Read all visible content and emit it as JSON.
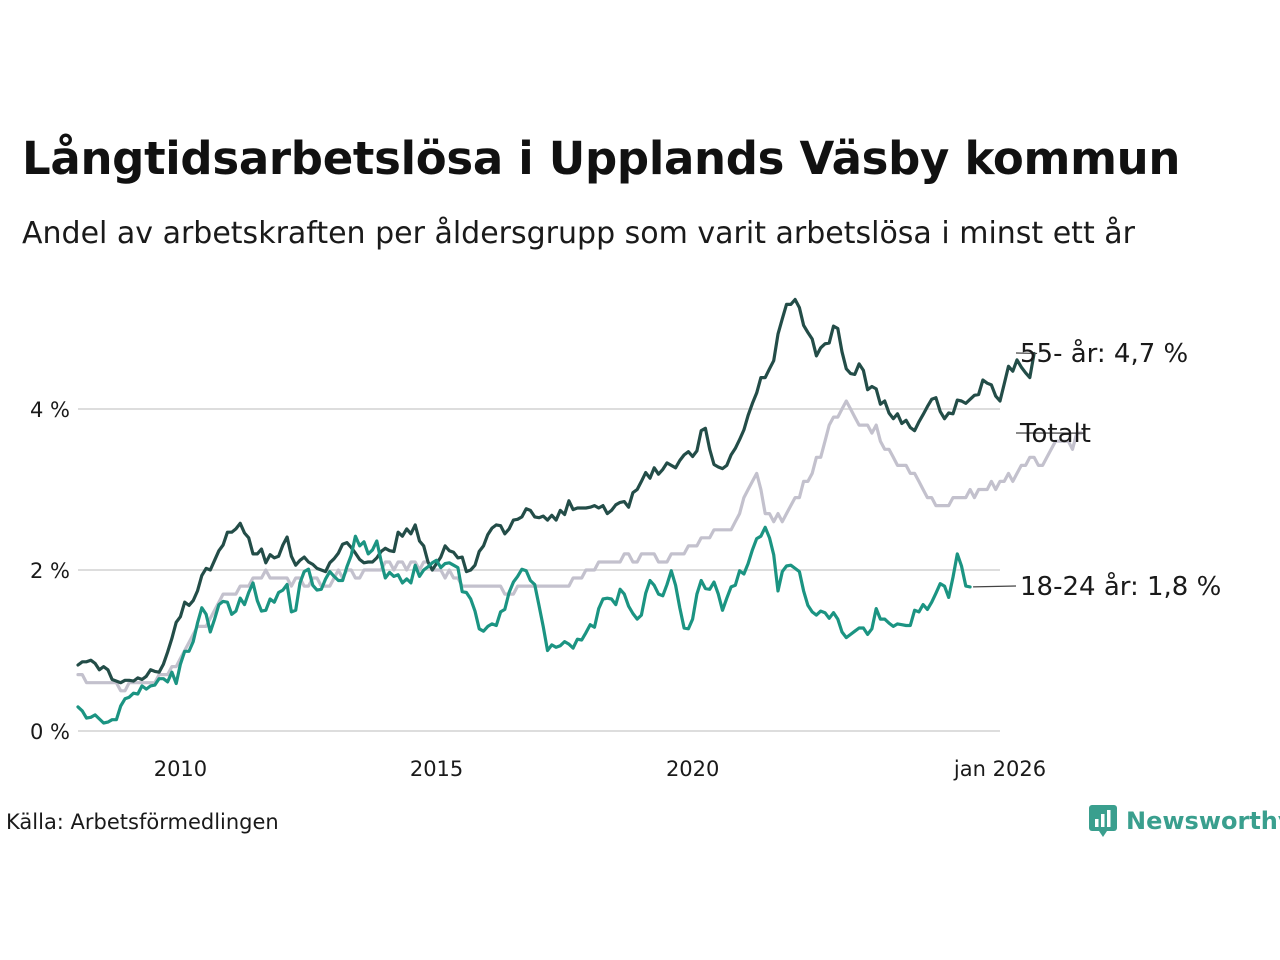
{
  "title": "Långtidsarbetslösa i Upplands Väsby kommun",
  "subtitle": "Andel av arbetskraften per åldersgrupp som varit arbetslösa i minst ett år",
  "source": "Källa: Arbetsförmedlingen",
  "brand": "Newsworthy",
  "colors": {
    "s55": "#234d48",
    "total": "#c3c1cd",
    "s1824": "#1b9482",
    "grid": "#dddddd",
    "brand": "#3a9f8e"
  },
  "chart_data": {
    "type": "line",
    "title": "Långtidsarbetslösa i Upplands Väsby kommun",
    "xlabel": "",
    "ylabel": "",
    "x_start": 2008.0,
    "x_step": 0.08333,
    "xlim": [
      2008.0,
      2026.0
    ],
    "ylim": [
      0,
      5.5
    ],
    "y_ticks": [
      {
        "v": 0,
        "label": "0 %"
      },
      {
        "v": 2,
        "label": "2 %"
      },
      {
        "v": 4,
        "label": "4 %"
      }
    ],
    "x_ticks": [
      {
        "v": 2010,
        "label": "2010"
      },
      {
        "v": 2015,
        "label": "2015"
      },
      {
        "v": 2020,
        "label": "2020"
      },
      {
        "v": 2026,
        "label": "jan 2026"
      }
    ],
    "grid": true,
    "series": [
      {
        "key": "total",
        "name": "Totalt",
        "label": "Totalt",
        "color": "#c3c1cd",
        "values": [
          0.7,
          0.7,
          0.6,
          0.6,
          0.6,
          0.6,
          0.6,
          0.6,
          0.6,
          0.6,
          0.5,
          0.5,
          0.6,
          0.6,
          0.6,
          0.6,
          0.6,
          0.6,
          0.6,
          0.7,
          0.7,
          0.7,
          0.8,
          0.8,
          0.9,
          1.0,
          1.1,
          1.2,
          1.3,
          1.3,
          1.3,
          1.4,
          1.5,
          1.6,
          1.7,
          1.7,
          1.7,
          1.7,
          1.8,
          1.8,
          1.8,
          1.9,
          1.9,
          1.9,
          2.0,
          1.9,
          1.9,
          1.9,
          1.9,
          1.9,
          1.8,
          1.9,
          1.9,
          1.8,
          1.8,
          1.9,
          1.9,
          1.8,
          1.8,
          1.8,
          1.9,
          2.0,
          1.9,
          2.0,
          2.0,
          1.9,
          1.9,
          2.0,
          2.0,
          2.0,
          2.0,
          2.0,
          2.1,
          2.1,
          2.0,
          2.1,
          2.1,
          2.0,
          2.1,
          2.1,
          2.0,
          2.1,
          2.1,
          2.0,
          2.0,
          2.0,
          1.9,
          2.0,
          1.9,
          1.9,
          1.8,
          1.8,
          1.8,
          1.8,
          1.8,
          1.8,
          1.8,
          1.8,
          1.8,
          1.8,
          1.7,
          1.7,
          1.7,
          1.8,
          1.8,
          1.8,
          1.8,
          1.8,
          1.8,
          1.8,
          1.8,
          1.8,
          1.8,
          1.8,
          1.8,
          1.8,
          1.9,
          1.9,
          1.9,
          2.0,
          2.0,
          2.0,
          2.1,
          2.1,
          2.1,
          2.1,
          2.1,
          2.1,
          2.2,
          2.2,
          2.1,
          2.1,
          2.2,
          2.2,
          2.2,
          2.2,
          2.1,
          2.1,
          2.1,
          2.2,
          2.2,
          2.2,
          2.2,
          2.3,
          2.3,
          2.3,
          2.4,
          2.4,
          2.4,
          2.5,
          2.5,
          2.5,
          2.5,
          2.5,
          2.6,
          2.7,
          2.9,
          3.0,
          3.1,
          3.2,
          3.0,
          2.7,
          2.7,
          2.6,
          2.7,
          2.6,
          2.7,
          2.8,
          2.9,
          2.9,
          3.1,
          3.1,
          3.2,
          3.4,
          3.4,
          3.6,
          3.8,
          3.9,
          3.9,
          4.0,
          4.1,
          4.0,
          3.9,
          3.8,
          3.8,
          3.8,
          3.7,
          3.8,
          3.6,
          3.5,
          3.5,
          3.4,
          3.3,
          3.3,
          3.3,
          3.2,
          3.2,
          3.1,
          3.0,
          2.9,
          2.9,
          2.8,
          2.8,
          2.8,
          2.8,
          2.9,
          2.9,
          2.9,
          2.9,
          3.0,
          2.9,
          3.0,
          3.0,
          3.0,
          3.1,
          3.0,
          3.1,
          3.1,
          3.2,
          3.1,
          3.2,
          3.3,
          3.3,
          3.4,
          3.4,
          3.3,
          3.3,
          3.4,
          3.5,
          3.6,
          3.6,
          3.6,
          3.6,
          3.5,
          3.7,
          3.7
        ]
      },
      {
        "key": "s55",
        "name": "55- år",
        "label": "55- år: 4,7 %",
        "color": "#234d48",
        "values": [
          0.82,
          0.86,
          0.86,
          0.88,
          0.84,
          0.76,
          0.8,
          0.76,
          0.64,
          0.62,
          0.6,
          0.63,
          0.63,
          0.62,
          0.66,
          0.64,
          0.68,
          0.76,
          0.74,
          0.73,
          0.83,
          0.98,
          1.15,
          1.35,
          1.42,
          1.6,
          1.56,
          1.62,
          1.74,
          1.93,
          2.02,
          2.0,
          2.12,
          2.24,
          2.31,
          2.47,
          2.47,
          2.51,
          2.58,
          2.46,
          2.4,
          2.2,
          2.2,
          2.26,
          2.09,
          2.19,
          2.15,
          2.17,
          2.31,
          2.41,
          2.17,
          2.06,
          2.12,
          2.16,
          2.1,
          2.07,
          2.02,
          2.0,
          1.98,
          2.09,
          2.14,
          2.21,
          2.32,
          2.34,
          2.28,
          2.21,
          2.13,
          2.09,
          2.1,
          2.1,
          2.15,
          2.23,
          2.27,
          2.24,
          2.23,
          2.47,
          2.42,
          2.51,
          2.45,
          2.56,
          2.36,
          2.3,
          2.1,
          2.0,
          2.08,
          2.16,
          2.3,
          2.24,
          2.22,
          2.15,
          2.16,
          1.98,
          2.0,
          2.06,
          2.23,
          2.3,
          2.44,
          2.52,
          2.56,
          2.55,
          2.45,
          2.51,
          2.62,
          2.63,
          2.66,
          2.76,
          2.74,
          2.66,
          2.65,
          2.67,
          2.62,
          2.68,
          2.62,
          2.74,
          2.69,
          2.86,
          2.75,
          2.77,
          2.77,
          2.77,
          2.78,
          2.8,
          2.77,
          2.8,
          2.7,
          2.74,
          2.81,
          2.84,
          2.85,
          2.78,
          2.96,
          3.0,
          3.1,
          3.21,
          3.14,
          3.27,
          3.19,
          3.25,
          3.33,
          3.3,
          3.27,
          3.36,
          3.43,
          3.47,
          3.41,
          3.48,
          3.73,
          3.76,
          3.5,
          3.31,
          3.28,
          3.26,
          3.3,
          3.43,
          3.51,
          3.62,
          3.74,
          3.92,
          4.07,
          4.2,
          4.39,
          4.39,
          4.5,
          4.6,
          4.93,
          5.12,
          5.3,
          5.3,
          5.36,
          5.26,
          5.04,
          4.95,
          4.87,
          4.66,
          4.76,
          4.81,
          4.82,
          5.03,
          5.0,
          4.71,
          4.5,
          4.44,
          4.43,
          4.56,
          4.48,
          4.24,
          4.28,
          4.25,
          4.06,
          4.1,
          3.95,
          3.88,
          3.94,
          3.82,
          3.86,
          3.77,
          3.73,
          3.84,
          3.93,
          4.03,
          4.12,
          4.14,
          3.97,
          3.88,
          3.95,
          3.94,
          4.11,
          4.1,
          4.07,
          4.12,
          4.17,
          4.18,
          4.36,
          4.32,
          4.3,
          4.16,
          4.1,
          4.31,
          4.53,
          4.47,
          4.61,
          4.52,
          4.45,
          4.39,
          4.69
        ]
      },
      {
        "key": "s1824",
        "name": "18-24 år",
        "label": "18-24 år: 1,8 %",
        "color": "#1b9482",
        "values": [
          0.3,
          0.25,
          0.16,
          0.17,
          0.2,
          0.15,
          0.1,
          0.11,
          0.14,
          0.14,
          0.31,
          0.4,
          0.42,
          0.47,
          0.46,
          0.56,
          0.52,
          0.56,
          0.57,
          0.65,
          0.65,
          0.61,
          0.73,
          0.59,
          0.83,
          0.99,
          0.99,
          1.11,
          1.34,
          1.53,
          1.45,
          1.23,
          1.39,
          1.57,
          1.61,
          1.6,
          1.45,
          1.49,
          1.65,
          1.57,
          1.72,
          1.84,
          1.62,
          1.49,
          1.5,
          1.64,
          1.6,
          1.72,
          1.75,
          1.82,
          1.48,
          1.5,
          1.84,
          1.98,
          2.01,
          1.81,
          1.75,
          1.76,
          1.89,
          1.98,
          1.92,
          1.87,
          1.87,
          2.04,
          2.18,
          2.42,
          2.3,
          2.35,
          2.2,
          2.25,
          2.36,
          2.11,
          1.9,
          1.97,
          1.92,
          1.94,
          1.84,
          1.89,
          1.84,
          2.06,
          1.92,
          2.0,
          2.04,
          2.09,
          2.12,
          2.03,
          2.08,
          2.09,
          2.06,
          2.03,
          1.73,
          1.72,
          1.64,
          1.49,
          1.27,
          1.24,
          1.3,
          1.33,
          1.31,
          1.48,
          1.51,
          1.72,
          1.85,
          1.92,
          2.01,
          1.99,
          1.87,
          1.82,
          1.56,
          1.3,
          1.0,
          1.07,
          1.04,
          1.06,
          1.11,
          1.08,
          1.03,
          1.14,
          1.13,
          1.22,
          1.32,
          1.29,
          1.52,
          1.64,
          1.65,
          1.64,
          1.57,
          1.76,
          1.7,
          1.55,
          1.46,
          1.39,
          1.44,
          1.71,
          1.87,
          1.81,
          1.7,
          1.68,
          1.82,
          1.99,
          1.81,
          1.53,
          1.28,
          1.27,
          1.39,
          1.7,
          1.87,
          1.77,
          1.76,
          1.85,
          1.7,
          1.5,
          1.65,
          1.79,
          1.81,
          1.99,
          1.95,
          2.08,
          2.25,
          2.39,
          2.42,
          2.53,
          2.4,
          2.19,
          1.74,
          1.98,
          2.05,
          2.06,
          2.02,
          1.98,
          1.74,
          1.56,
          1.48,
          1.44,
          1.49,
          1.47,
          1.4,
          1.47,
          1.39,
          1.23,
          1.16,
          1.2,
          1.24,
          1.28,
          1.28,
          1.2,
          1.27,
          1.52,
          1.39,
          1.39,
          1.34,
          1.3,
          1.33,
          1.32,
          1.31,
          1.31,
          1.5,
          1.48,
          1.57,
          1.51,
          1.6,
          1.71,
          1.83,
          1.8,
          1.66,
          1.91,
          2.2,
          2.05,
          1.8,
          1.79
        ]
      }
    ]
  }
}
